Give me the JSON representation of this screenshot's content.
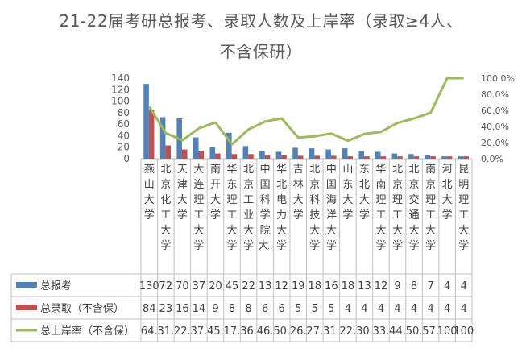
{
  "chart_data": {
    "type": "bar",
    "title_line1": "21-22届考研总报考、录取人数及上岸率（录取≥4人、",
    "title_line2": "不含保研）",
    "categories": [
      "燕山大学",
      "北京化工大学",
      "天津大学",
      "大连理工大学",
      "南开大学",
      "华东理工大学",
      "北京工业大学",
      "中国科学院大...",
      "华北电力大学",
      "吉林大学",
      "北京科技大学",
      "中国海洋大学",
      "山东大学",
      "东北大学",
      "华南理工大学",
      "北京理工大学",
      "北京交通大学",
      "南京理工大学",
      "河北大学",
      "昆明理工大学"
    ],
    "series": [
      {
        "name": "总报考",
        "axis": "left",
        "kind": "bar",
        "color": "#4f81bd",
        "values": [
          130,
          72,
          70,
          37,
          20,
          45,
          22,
          13,
          12,
          19,
          18,
          16,
          18,
          13,
          12,
          9,
          8,
          7,
          4,
          4
        ],
        "table_labels": [
          "130",
          "72",
          "70",
          "37",
          "20",
          "45",
          "22",
          "13",
          "12",
          "19",
          "18",
          "16",
          "18",
          "13",
          "12",
          "9",
          "8",
          "7",
          "4",
          "4"
        ]
      },
      {
        "name": "总录取（不含保）",
        "axis": "left",
        "kind": "bar",
        "color": "#c0504d",
        "values": [
          84,
          23,
          16,
          14,
          9,
          8,
          8,
          6,
          6,
          5,
          5,
          5,
          4,
          4,
          4,
          4,
          4,
          4,
          4,
          4
        ],
        "table_labels": [
          "84",
          "23",
          "16",
          "14",
          "9",
          "8",
          "8",
          "6",
          "6",
          "5",
          "5",
          "5",
          "4",
          "4",
          "4",
          "4",
          "4",
          "4",
          "4",
          "4"
        ]
      },
      {
        "name": "总上岸率（不含保）",
        "axis": "right",
        "kind": "line",
        "color": "#9bbb59",
        "values": [
          64.6,
          31.9,
          22.9,
          37.8,
          45.0,
          17.8,
          36.4,
          46.2,
          50.0,
          26.3,
          27.8,
          31.3,
          22.2,
          30.8,
          33.3,
          44.4,
          50.0,
          57.1,
          100,
          100
        ],
        "table_labels": [
          "64.",
          "31.",
          "22.",
          "37.",
          "45.",
          "17.",
          "36.",
          "46.",
          "50.",
          "26.",
          "27.",
          "31.",
          "22.",
          "30.",
          "33.",
          "44.",
          "50.",
          "57.",
          "100",
          "100"
        ]
      }
    ],
    "left_axis": {
      "min": 0,
      "max": 140,
      "step": 20,
      "ticks": [
        "0",
        "20",
        "40",
        "60",
        "80",
        "100",
        "120",
        "140"
      ]
    },
    "right_axis": {
      "min": 0,
      "max": 100,
      "step": 20,
      "ticks": [
        "0.0%",
        "20.0%",
        "40.0%",
        "60.0%",
        "80.0%",
        "100.0%"
      ]
    },
    "legend": "data-table",
    "grid": false
  }
}
